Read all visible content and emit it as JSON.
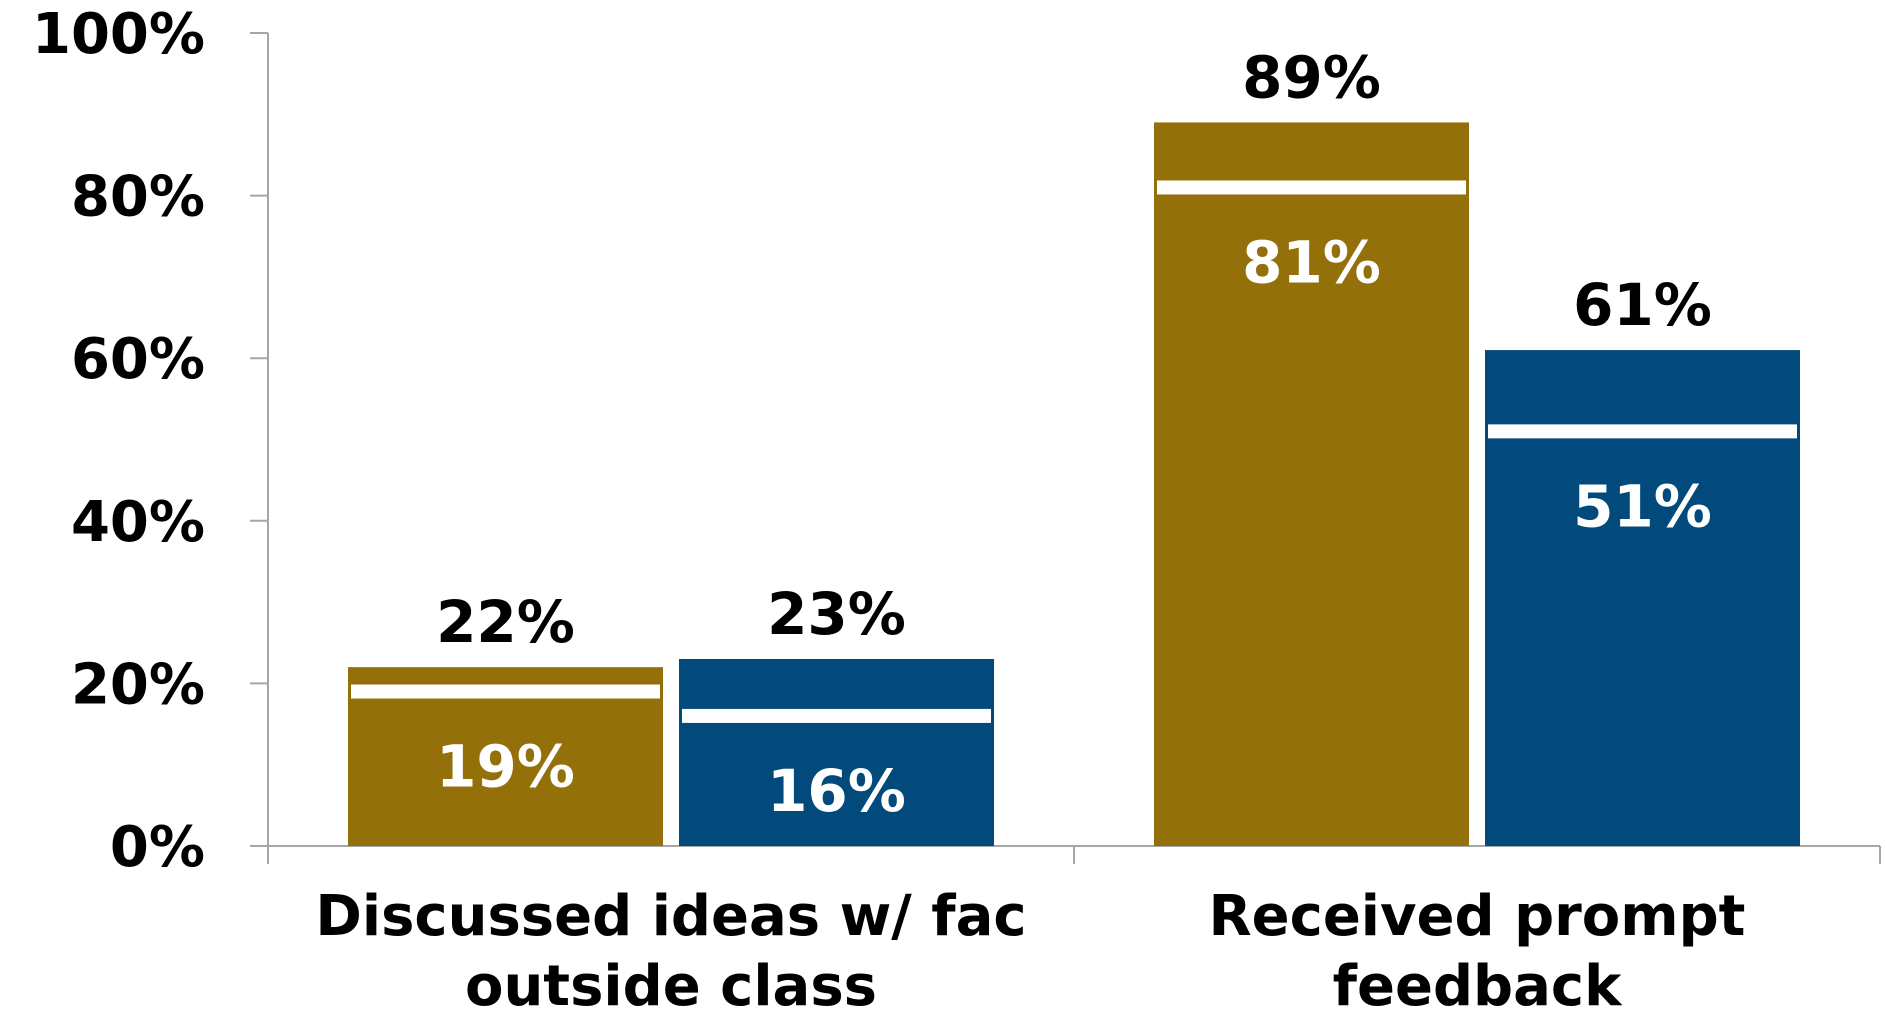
{
  "chart_data": {
    "type": "bar",
    "title": "",
    "xlabel": "",
    "ylabel": "",
    "ylim": [
      0,
      100
    ],
    "y_ticks": [
      "0%",
      "20%",
      "40%",
      "60%",
      "80%",
      "100%"
    ],
    "grid": false,
    "legend": "none",
    "categories": [
      [
        "Discussed ideas w/ fac",
        "outside class"
      ],
      [
        "Received prompt",
        "feedback"
      ]
    ],
    "series": [
      {
        "values": [
          22,
          89
        ],
        "value_labels": [
          "22%",
          "89%"
        ],
        "marker_values": [
          19,
          81
        ],
        "marker_labels": [
          "19%",
          "81%"
        ],
        "color": "#94700A"
      },
      {
        "values": [
          23,
          61
        ],
        "value_labels": [
          "23%",
          "61%"
        ],
        "marker_values": [
          16,
          51
        ],
        "marker_labels": [
          "16%",
          "51%"
        ],
        "color": "#02497C"
      }
    ],
    "marker_color": "#ffffff",
    "outer_label_color": "#000000",
    "inner_label_color": "#ffffff"
  }
}
